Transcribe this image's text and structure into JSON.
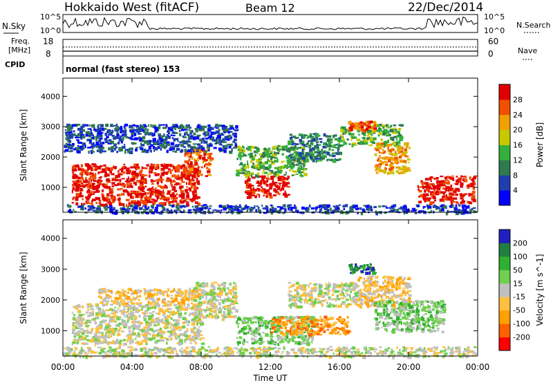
{
  "header": {
    "title": "Hokkaido West (fitACF)",
    "beam": "Beam 12",
    "date": "22/Dec/2014"
  },
  "status_panel": {
    "left_sky": "N.Sky",
    "left_freq_a": "Freq.",
    "left_freq_b": "[MHz]",
    "left_cpid": "CPID",
    "right_search": "N.Search",
    "right_nave": "Nave",
    "noise_tick_hi": "10^5",
    "noise_tick_lo": "10^0",
    "freq_ticks": [
      "18",
      "8"
    ],
    "nave_ticks": [
      "60",
      "0"
    ],
    "cpid_label": "normal (fast stereo) 153"
  },
  "chart_data": [
    {
      "type": "heatmap",
      "panel": "power",
      "ylabel": "Slant Range [km]",
      "yticks": [
        "1000",
        "2000",
        "3000",
        "4000"
      ],
      "ylim": [
        180,
        4600
      ],
      "colorbar_label": "Power [dB]",
      "colorbar_ticks": [
        "4",
        "8",
        "12",
        "16",
        "20",
        "24",
        "28"
      ],
      "colors": [
        "#0000ff",
        "#1f3fb0",
        "#2f7a4f",
        "#34b03c",
        "#c8c800",
        "#f0a000",
        "#f05000",
        "#e00000"
      ],
      "patches": [
        {
          "t": [
            0.5,
            7.8
          ],
          "r": [
            450,
            1800
          ],
          "level": 7
        },
        {
          "t": [
            7.0,
            8.5
          ],
          "r": [
            1400,
            2300
          ],
          "level": 6
        },
        {
          "t": [
            10.5,
            13.0
          ],
          "r": [
            700,
            1400
          ],
          "level": 7
        },
        {
          "t": [
            10.0,
            14.0
          ],
          "r": [
            1400,
            2400
          ],
          "level": 3
        },
        {
          "t": [
            13.0,
            16.0
          ],
          "r": [
            1900,
            2800
          ],
          "level": 2
        },
        {
          "t": [
            16.0,
            19.5
          ],
          "r": [
            2400,
            3100
          ],
          "level": 3
        },
        {
          "t": [
            16.5,
            18.0
          ],
          "r": [
            2900,
            3200
          ],
          "level": 6
        },
        {
          "t": [
            18.0,
            20.0
          ],
          "r": [
            1500,
            2500
          ],
          "level": 5
        },
        {
          "t": [
            20.5,
            23.8
          ],
          "r": [
            500,
            1400
          ],
          "level": 7
        },
        {
          "t": [
            0.0,
            10.0
          ],
          "r": [
            2200,
            3100
          ],
          "level": 1
        },
        {
          "t": [
            0.0,
            24.0
          ],
          "r": [
            180,
            450
          ],
          "level": 1
        }
      ]
    },
    {
      "type": "heatmap",
      "panel": "velocity",
      "ylabel": "Slant Range [km]",
      "yticks": [
        "1000",
        "2000",
        "3000",
        "4000"
      ],
      "ylim": [
        180,
        4600
      ],
      "xlabel": "Time UT",
      "xticks": [
        "00:00",
        "04:00",
        "08:00",
        "12:00",
        "16:00",
        "20:00",
        "00:00"
      ],
      "xlim": [
        0,
        24
      ],
      "colorbar_label": "Velocity [m s^-1]",
      "colorbar_ticks": [
        "-200",
        "-100",
        "-50",
        "-15",
        "15",
        "50",
        "100",
        "200"
      ],
      "colors": [
        "#ff0000",
        "#ff6000",
        "#ffa000",
        "#ffc040",
        "#c0c0c0",
        "#70d050",
        "#30b030",
        "#208040",
        "#2020c0"
      ],
      "patches": [
        {
          "t": [
            0.5,
            8.0
          ],
          "r": [
            600,
            1900
          ],
          "level": 4
        },
        {
          "t": [
            2.0,
            8.0
          ],
          "r": [
            1900,
            2400
          ],
          "level": 3
        },
        {
          "t": [
            7.5,
            10.0
          ],
          "r": [
            1400,
            2600
          ],
          "level": 4
        },
        {
          "t": [
            10.0,
            14.5
          ],
          "r": [
            600,
            1500
          ],
          "level": 5
        },
        {
          "t": [
            12.0,
            16.5
          ],
          "r": [
            900,
            1500
          ],
          "level": 2
        },
        {
          "t": [
            13.0,
            17.0
          ],
          "r": [
            1800,
            2600
          ],
          "level": 4
        },
        {
          "t": [
            16.5,
            18.0
          ],
          "r": [
            2900,
            3200
          ],
          "level": 7
        },
        {
          "t": [
            17.0,
            20.0
          ],
          "r": [
            1800,
            2800
          ],
          "level": 3
        },
        {
          "t": [
            18.0,
            22.0
          ],
          "r": [
            1000,
            2000
          ],
          "level": 5
        },
        {
          "t": [
            0.0,
            24.0
          ],
          "r": [
            180,
            500
          ],
          "level": 4
        }
      ]
    }
  ]
}
